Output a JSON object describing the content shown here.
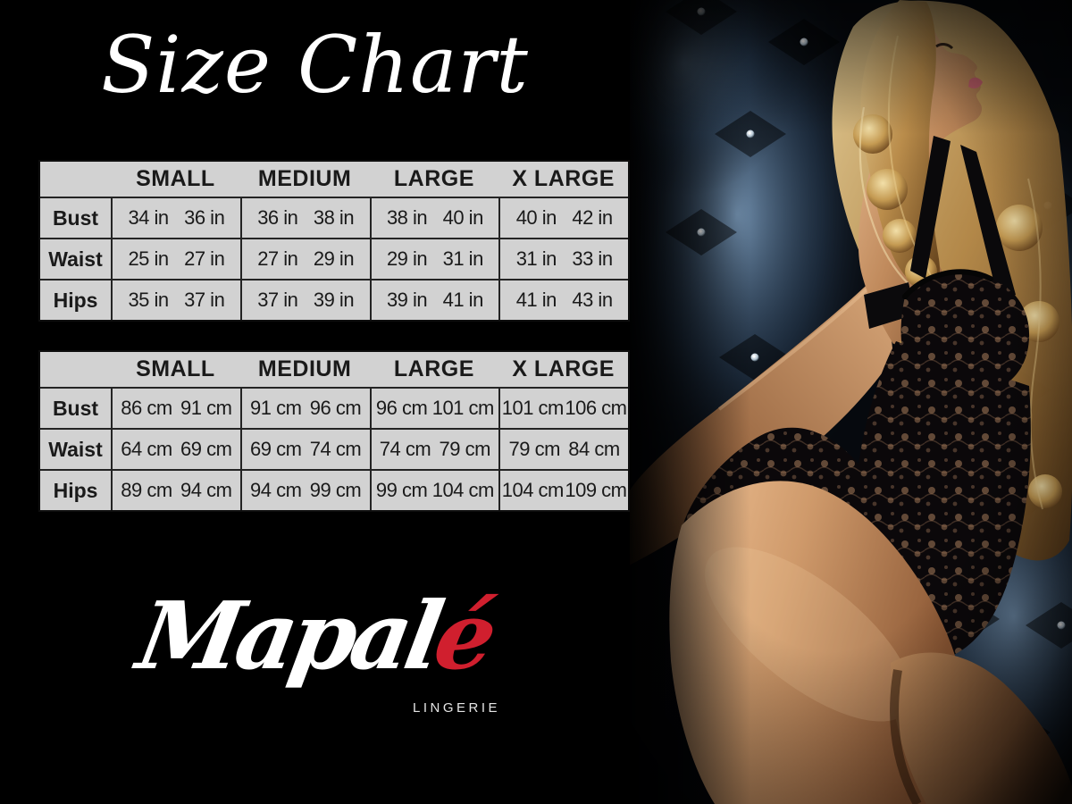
{
  "title": "Size Chart",
  "logo": {
    "brand_main": "Mapal",
    "brand_accent": "é",
    "subtitle": "LINGERIE",
    "accent_color": "#d01f2e"
  },
  "size_tables": [
    {
      "id": "inches",
      "unit": "in",
      "corner_label": "",
      "columns": [
        "SMALL",
        "MEDIUM",
        "LARGE",
        "X LARGE"
      ],
      "rows": [
        {
          "label": "Bust",
          "values": [
            [
              "34 in",
              "36 in"
            ],
            [
              "36 in",
              "38 in"
            ],
            [
              "38 in",
              "40 in"
            ],
            [
              "40 in",
              "42 in"
            ]
          ]
        },
        {
          "label": "Waist",
          "values": [
            [
              "25 in",
              "27 in"
            ],
            [
              "27 in",
              "29 in"
            ],
            [
              "29 in",
              "31 in"
            ],
            [
              "31 in",
              "33 in"
            ]
          ]
        },
        {
          "label": "Hips",
          "values": [
            [
              "35 in",
              "37 in"
            ],
            [
              "37 in",
              "39 in"
            ],
            [
              "39 in",
              "41 in"
            ],
            [
              "41 in",
              "43 in"
            ]
          ]
        }
      ]
    },
    {
      "id": "centimeters",
      "unit": "cm",
      "corner_label": "",
      "columns": [
        "SMALL",
        "MEDIUM",
        "LARGE",
        "X LARGE"
      ],
      "rows": [
        {
          "label": "Bust",
          "values": [
            [
              "86 cm",
              "91 cm"
            ],
            [
              "91 cm",
              "96 cm"
            ],
            [
              "96 cm",
              "101 cm"
            ],
            [
              "101 cm",
              "106 cm"
            ]
          ]
        },
        {
          "label": "Waist",
          "values": [
            [
              "64 cm",
              "69 cm"
            ],
            [
              "69 cm",
              "74 cm"
            ],
            [
              "74 cm",
              "79 cm"
            ],
            [
              "79 cm",
              "84 cm"
            ]
          ]
        },
        {
          "label": "Hips",
          "values": [
            [
              "89 cm",
              "94 cm"
            ],
            [
              "94 cm",
              "99 cm"
            ],
            [
              "99 cm",
              "104 cm"
            ],
            [
              "104 cm",
              "109 cm"
            ]
          ]
        }
      ]
    }
  ],
  "colors": {
    "background": "#000000",
    "table_bg": "#d2d2d2",
    "table_border": "#141414",
    "table_text": "#1a1a1a",
    "title_text": "#ffffff",
    "accent_red": "#d01f2e",
    "upholstery_blue": "#47678a",
    "skin_tone": "#c08a5c",
    "hair_blonde": "#c9a05f"
  }
}
